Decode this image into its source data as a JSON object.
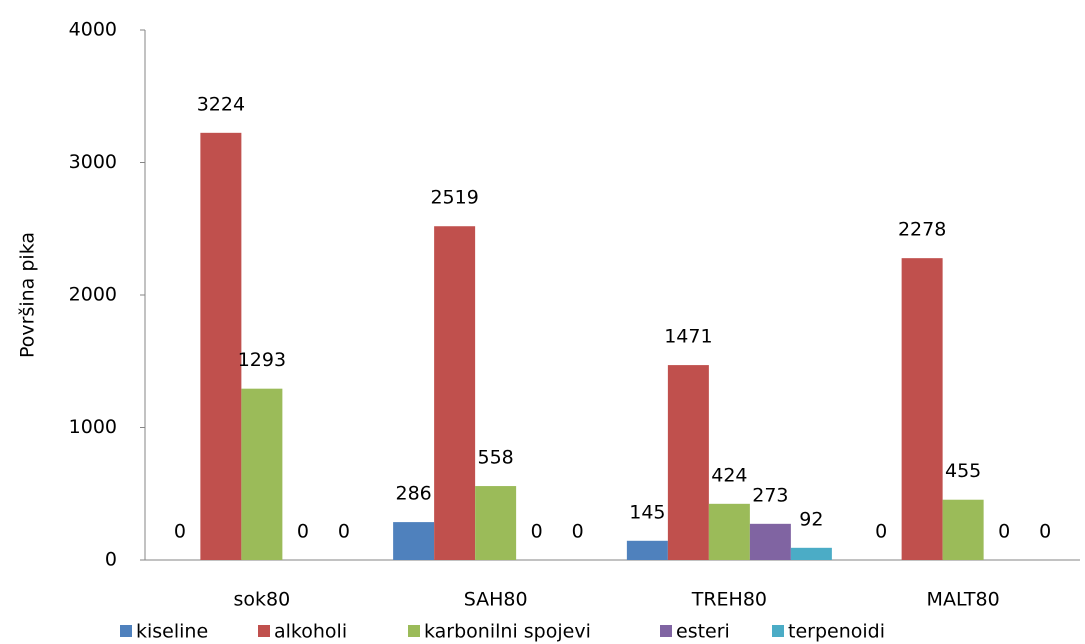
{
  "chart_data": {
    "type": "bar",
    "y_label": "Površina pika",
    "categories": [
      "sok80",
      "SAH80",
      "TREH80",
      "MALT80"
    ],
    "series": [
      {
        "name": "kiseline",
        "color": "#4f81bd",
        "values": [
          0,
          286,
          145,
          0
        ]
      },
      {
        "name": "alkoholi",
        "color": "#c0504d",
        "values": [
          3224,
          2519,
          1471,
          2278
        ]
      },
      {
        "name": "karbonilni spojevi",
        "color": "#9bbb59",
        "values": [
          1293,
          558,
          424,
          455
        ]
      },
      {
        "name": "esteri",
        "color": "#8064a2",
        "values": [
          0,
          0,
          273,
          0
        ]
      },
      {
        "name": "terpenoidi",
        "color": "#4bacc6",
        "values": [
          0,
          0,
          92,
          0
        ]
      }
    ],
    "ylim": [
      0,
      4000
    ],
    "yticks": [
      0,
      1000,
      2000,
      3000,
      4000
    ],
    "grid": false,
    "legend": "bottom"
  }
}
